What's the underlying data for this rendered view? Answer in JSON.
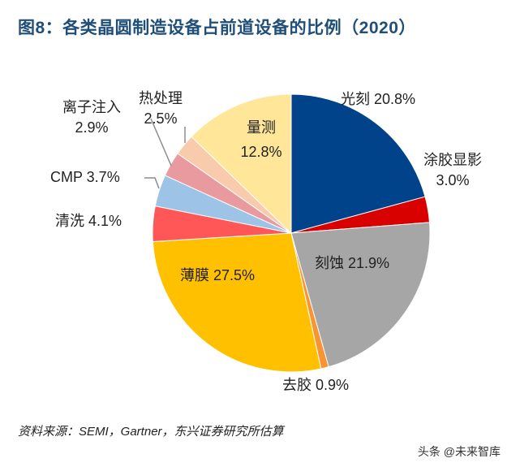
{
  "title": "图8：各类晶圆制造设备占前道设备的比例（2020）",
  "source": "资料来源：SEMI，Gartner，东兴证券研究所估算",
  "watermark": "头条 @未来智库",
  "chart_data": {
    "type": "pie",
    "start": "12 o'clock, clockwise",
    "slices": [
      {
        "name": "光刻",
        "value": 20.8,
        "label": "20.8%",
        "color": "#00438a"
      },
      {
        "name": "涂胶显影",
        "value": 3.0,
        "label": "3.0%",
        "color": "#d90000"
      },
      {
        "name": "刻蚀",
        "value": 21.9,
        "label": "21.9%",
        "color": "#a6a6a6"
      },
      {
        "name": "去胶",
        "value": 0.9,
        "label": "0.9%",
        "color": "#f79433"
      },
      {
        "name": "薄膜",
        "value": 27.5,
        "label": "27.5%",
        "color": "#ffc000"
      },
      {
        "name": "清洗",
        "value": 4.1,
        "label": "4.1%",
        "color": "#ff5757"
      },
      {
        "name": "CMP",
        "value": 3.7,
        "label": "3.7%",
        "color": "#9dc3e6"
      },
      {
        "name": "离子注入",
        "value": 2.9,
        "label": "2.9%",
        "color": "#e89a9e"
      },
      {
        "name": "热处理",
        "value": 2.5,
        "label": "2.5%",
        "color": "#f8cbad"
      },
      {
        "name": "量测",
        "value": 12.8,
        "label": "12.8%",
        "color": "#ffe699"
      }
    ]
  }
}
